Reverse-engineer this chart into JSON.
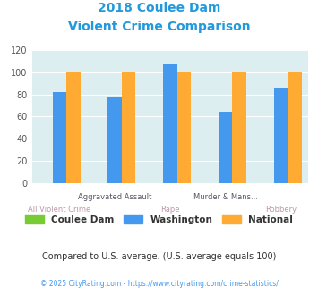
{
  "title_line1": "2018 Coulee Dam",
  "title_line2": "Violent Crime Comparison",
  "groups": [
    "All Violent Crime",
    "Aggravated Assault",
    "Rape",
    "Murder & Mans...",
    "Robbery"
  ],
  "top_labels": {
    "1": "Aggravated Assault",
    "3": "Murder & Mans..."
  },
  "bottom_labels": {
    "0": "All Violent Crime",
    "2": "Rape",
    "4": "Robbery"
  },
  "coulee_dam": [
    0,
    0,
    0,
    0,
    0
  ],
  "washington": [
    82,
    77,
    107,
    64,
    86
  ],
  "national": [
    100,
    100,
    100,
    100,
    100
  ],
  "bar_colors": {
    "coulee_dam": "#77cc33",
    "washington": "#4499ee",
    "national": "#ffaa33"
  },
  "ylim": [
    0,
    120
  ],
  "yticks": [
    0,
    20,
    40,
    60,
    80,
    100,
    120
  ],
  "bg_color": "#ddeef0",
  "title_color": "#2299dd",
  "top_label_color": "#555566",
  "bottom_label_color": "#bb99aa",
  "legend_text_color": "#333333",
  "subtitle_note": "Compared to U.S. average. (U.S. average equals 100)",
  "subtitle_color": "#333333",
  "footer": "© 2025 CityRating.com - https://www.cityrating.com/crime-statistics/",
  "footer_color": "#4499ee",
  "bar_width": 0.25
}
